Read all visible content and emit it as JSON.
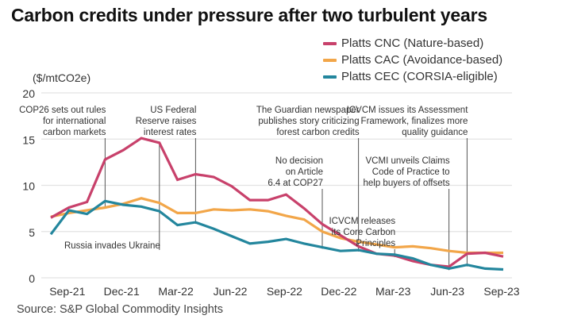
{
  "title": "Carbon credits under pressure after two turbulent years",
  "unit_label": "($/mtCO2e)",
  "source": "Source: S&P Global Commodity Insights",
  "chart_data": {
    "type": "line",
    "title": "Carbon credits under pressure after two turbulent years",
    "xlabel": "",
    "ylabel": "($/mtCO2e)",
    "ylim": [
      0,
      20
    ],
    "yticks": [
      0,
      5,
      10,
      15,
      20
    ],
    "grid": true,
    "legend_position": "top-right",
    "x": [
      "Aug-21",
      "Sep-21",
      "Oct-21",
      "Nov-21",
      "Dec-21",
      "Jan-22",
      "Feb-22",
      "Mar-22",
      "Apr-22",
      "May-22",
      "Jun-22",
      "Jul-22",
      "Aug-22",
      "Sep-22",
      "Oct-22",
      "Nov-22",
      "Dec-22",
      "Jan-23",
      "Feb-23",
      "Mar-23",
      "Apr-23",
      "May-23",
      "Jun-23",
      "Jul-23",
      "Aug-23",
      "Sep-23"
    ],
    "xtick_labels": [
      "Sep-21",
      "Dec-21",
      "Mar-22",
      "Jun-22",
      "Sep-22",
      "Dec-22",
      "Mar-23",
      "Jun-23",
      "Sep-23"
    ],
    "xtick_indices": [
      1,
      4,
      7,
      10,
      13,
      16,
      19,
      22,
      25
    ],
    "series": [
      {
        "name": "Platts CNC (Nature-based)",
        "color": "#c8416b",
        "values": [
          6.5,
          7.6,
          8.2,
          12.8,
          13.8,
          15.1,
          14.6,
          10.6,
          11.2,
          10.9,
          9.9,
          8.4,
          8.4,
          9.0,
          7.5,
          5.8,
          4.6,
          3.4,
          2.6,
          2.4,
          1.8,
          1.4,
          1.2,
          2.6,
          2.7,
          2.3
        ]
      },
      {
        "name": "Platts CAC (Avoidance-based)",
        "color": "#f2a649",
        "values": [
          6.6,
          7.0,
          7.3,
          7.6,
          8.0,
          8.6,
          8.1,
          7.0,
          7.0,
          7.4,
          7.3,
          7.4,
          7.2,
          6.7,
          6.3,
          5.0,
          4.3,
          3.9,
          3.6,
          3.3,
          3.4,
          3.2,
          2.9,
          2.7,
          2.7,
          2.7
        ]
      },
      {
        "name": "Platts CEC (CORSIA-eligible)",
        "color": "#23869d",
        "values": [
          4.7,
          7.3,
          6.9,
          8.3,
          7.9,
          7.7,
          7.2,
          5.7,
          6.0,
          5.3,
          4.5,
          3.7,
          3.9,
          4.2,
          3.7,
          3.3,
          2.9,
          3.0,
          2.6,
          2.5,
          2.1,
          1.4,
          1.0,
          1.4,
          1.0,
          0.9
        ]
      }
    ],
    "annotations": [
      {
        "text": [
          "COP26 sets out rules",
          "for international",
          "carbon markets"
        ],
        "x_index": 3,
        "tier": 1,
        "side": "left"
      },
      {
        "text": [
          "Russia invades Ukraine"
        ],
        "x_index": 6,
        "tier": 0,
        "side": "below"
      },
      {
        "text": [
          "US Federal",
          "Reserve raises",
          "interest rates"
        ],
        "x_index": 8,
        "tier": 1,
        "side": "left"
      },
      {
        "text": [
          "No decision",
          "on Article",
          "6.4 at COP27"
        ],
        "x_index": 15,
        "tier": 2,
        "side": "left"
      },
      {
        "text": [
          "The Guardian newspaper",
          "publishes story criticizing",
          "forest carbon credits"
        ],
        "x_index": 17,
        "tier": 1,
        "side": "left"
      },
      {
        "text": [
          "ICVCM releases",
          "its Core Carbon",
          "Principles"
        ],
        "x_index": 19,
        "tier": 3,
        "side": "left"
      },
      {
        "text": [
          "VCMI unveils Claims",
          "Code of Practice to",
          "help buyers of offsets"
        ],
        "x_index": 22,
        "tier": 2,
        "side": "left"
      },
      {
        "text": [
          "ICVCM issues its Assessment",
          "Framework, finalizes more",
          "quality guidance"
        ],
        "x_index": 23,
        "tier": 1,
        "side": "left"
      }
    ]
  }
}
